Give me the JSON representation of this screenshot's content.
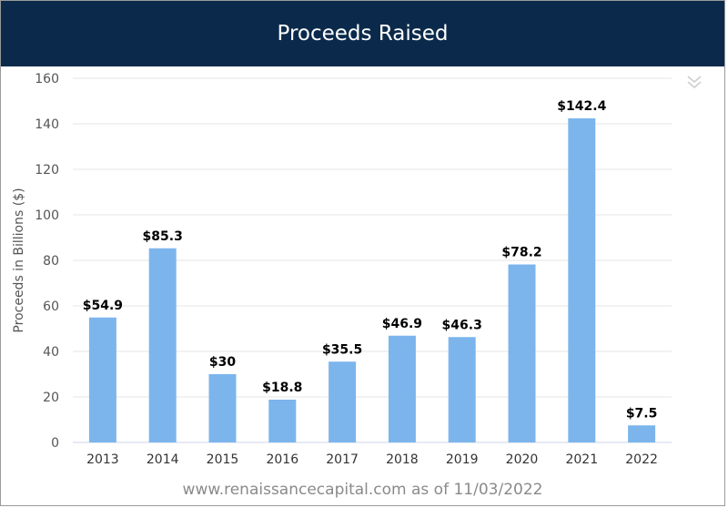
{
  "header": {
    "title": "Proceeds Raised"
  },
  "menu": {
    "icon": "chevron-double-down-icon"
  },
  "footer": {
    "text": "www.renaissancecapital.com as of 11/03/2022"
  },
  "colors": {
    "header_bg": "#0b2a4b",
    "bar": "#7cb5ec",
    "grid": "#e6e6e6"
  },
  "chart_data": {
    "type": "bar",
    "title": "Proceeds Raised",
    "xlabel": "",
    "ylabel": "Proceeds in Billions ($)",
    "ylim": [
      0,
      160
    ],
    "yticks": [
      0,
      20,
      40,
      60,
      80,
      100,
      120,
      140,
      160
    ],
    "categories": [
      "2013",
      "2014",
      "2015",
      "2016",
      "2017",
      "2018",
      "2019",
      "2020",
      "2021",
      "2022"
    ],
    "values": [
      54.9,
      85.3,
      30,
      18.8,
      35.5,
      46.9,
      46.3,
      78.2,
      142.4,
      7.5
    ],
    "data_labels": [
      "$54.9",
      "$85.3",
      "$30",
      "$18.8",
      "$35.5",
      "$46.9",
      "$46.3",
      "$78.2",
      "$142.4",
      "$7.5"
    ],
    "grid": true,
    "legend": "none"
  }
}
